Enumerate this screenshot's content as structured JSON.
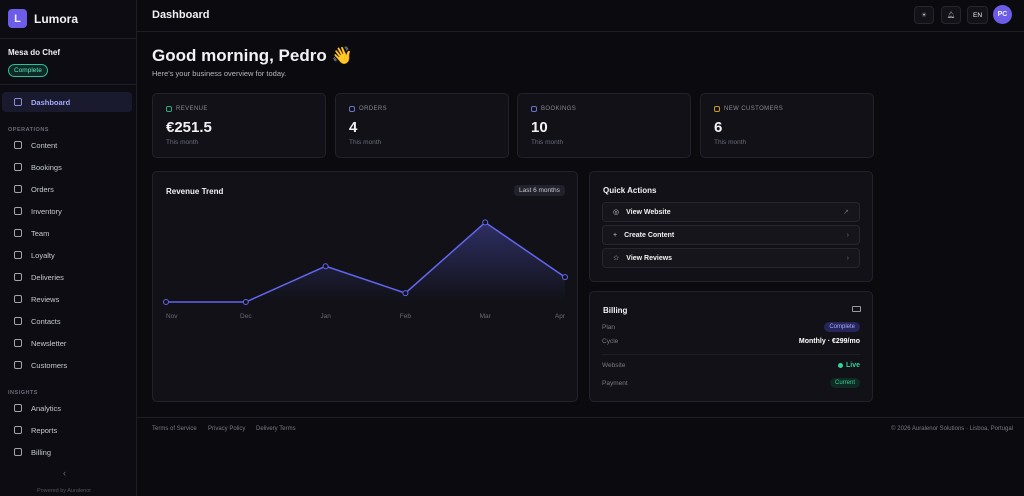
{
  "sidebar": {
    "logo": "L",
    "brand": "Lumora",
    "org": "Mesa do Chef",
    "status": "Complete",
    "active": "Dashboard",
    "sections": [
      {
        "title": "OPERATIONS",
        "items": [
          "Content",
          "Bookings",
          "Orders",
          "Inventory",
          "Team",
          "Loyalty",
          "Deliveries",
          "Reviews",
          "Contacts",
          "Newsletter",
          "Customers"
        ]
      },
      {
        "title": "INSIGHTS",
        "items": [
          "Analytics",
          "Reports",
          "Billing"
        ]
      }
    ],
    "collapse": "‹",
    "footer": "Powered by Auralenor"
  },
  "header": {
    "title": "Dashboard",
    "language": "EN",
    "avatar": "PC"
  },
  "greeting": {
    "title": "Good morning, Pedro 👋",
    "subtitle": "Here's your business overview for today."
  },
  "stats": [
    {
      "label": "REVENUE",
      "value": "€251.5",
      "period": "This month"
    },
    {
      "label": "ORDERS",
      "value": 4,
      "period": "This month"
    },
    {
      "label": "BOOKINGS",
      "value": 10,
      "period": "This month"
    },
    {
      "label": "NEW CUSTOMERS",
      "value": 6,
      "period": "This month"
    }
  ],
  "chart_data": {
    "type": "line",
    "title": "Revenue Trend",
    "badge": "Last 6 months",
    "categories": [
      "Nov",
      "Dec",
      "Jan",
      "Feb",
      "Mar",
      "Apr"
    ],
    "values": [
      0,
      0,
      362,
      90,
      805,
      251.5
    ],
    "color": "#6366f1",
    "ylim": [
      0,
      900
    ]
  },
  "quick_actions": {
    "title": "Quick Actions",
    "items": [
      "View Website",
      "Create Content",
      "View Reviews"
    ]
  },
  "billing": {
    "title": "Billing",
    "rows": [
      {
        "label": "Plan",
        "value": "Complete"
      },
      {
        "label": "Cycle",
        "value": "Monthly · €299/mo"
      },
      {
        "label": "Website",
        "value": "Live"
      },
      {
        "label": "Payment",
        "value": "Current"
      }
    ]
  },
  "footer": {
    "links": [
      "Terms of Service",
      "Privacy Policy",
      "Delivery Terms"
    ],
    "copyright": "© 2026 Auralenor Solutions · Lisboa, Portugal"
  }
}
